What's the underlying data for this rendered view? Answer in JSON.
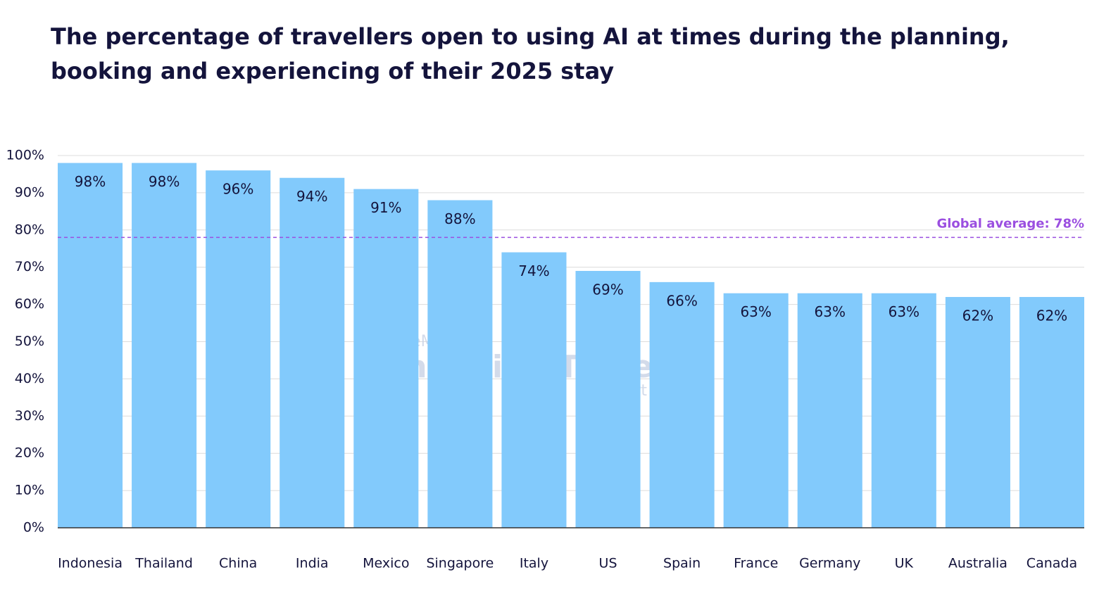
{
  "chart_data": {
    "type": "bar",
    "title": "The percentage of travellers open to using AI at times during the planning, booking and experiencing of their 2025 stay",
    "categories": [
      "Indonesia",
      "Thailand",
      "China",
      "India",
      "Mexico",
      "Singapore",
      "Italy",
      "US",
      "Spain",
      "France",
      "Germany",
      "UK",
      "Australia",
      "Canada"
    ],
    "values": [
      98,
      98,
      96,
      94,
      91,
      88,
      74,
      69,
      66,
      63,
      63,
      63,
      62,
      62
    ],
    "value_labels": [
      "98%",
      "98%",
      "96%",
      "94%",
      "91%",
      "88%",
      "74%",
      "69%",
      "66%",
      "63%",
      "63%",
      "63%",
      "62%",
      "62%"
    ],
    "color": "#82cafc",
    "ylim": [
      0,
      100
    ],
    "yticks": [
      {
        "value": 0,
        "label": "0%"
      },
      {
        "value": 10,
        "label": "10%"
      },
      {
        "value": 20,
        "label": "20%"
      },
      {
        "value": 30,
        "label": "30%"
      },
      {
        "value": 40,
        "label": "40%"
      },
      {
        "value": 50,
        "label": "50%"
      },
      {
        "value": 60,
        "label": "60%"
      },
      {
        "value": 70,
        "label": "70%"
      },
      {
        "value": 80,
        "label": "80%"
      },
      {
        "value": 90,
        "label": "90%"
      },
      {
        "value": 100,
        "label": "100%"
      }
    ],
    "grid": true,
    "reference_line": {
      "value": 78,
      "label": "Global average: 78%",
      "color": "#9b4fe0"
    },
    "watermark": [
      "SiteMinder's",
      "Changing Traveller",
      "Report 2025"
    ]
  }
}
